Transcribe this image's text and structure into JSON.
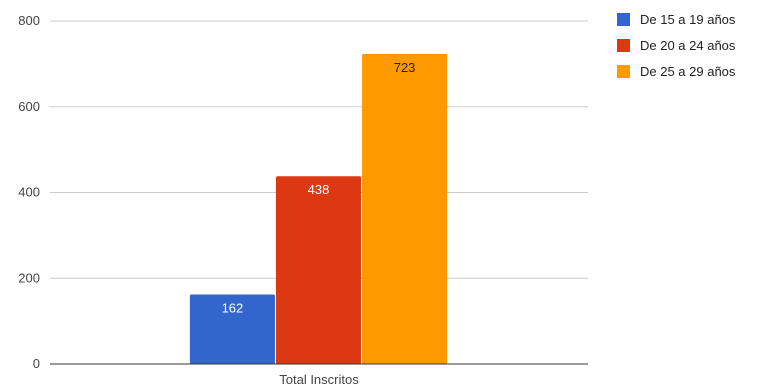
{
  "chart_data": {
    "type": "bar",
    "categories": [
      "Total Inscritos"
    ],
    "series": [
      {
        "name": "De 15 a 19 años",
        "values": [
          162
        ],
        "color": "#3366cc",
        "label_color": "#ffffff"
      },
      {
        "name": "De 20 a 24 años",
        "values": [
          438
        ],
        "color": "#dc3912",
        "label_color": "#ffffff"
      },
      {
        "name": "De 25 a 29 años",
        "values": [
          723
        ],
        "color": "#ff9900",
        "label_color": "#222222"
      }
    ],
    "yticks": [
      0,
      200,
      400,
      600,
      800
    ],
    "ylim": [
      0,
      800
    ],
    "grid": true,
    "legend": "right",
    "data_labels": true
  }
}
